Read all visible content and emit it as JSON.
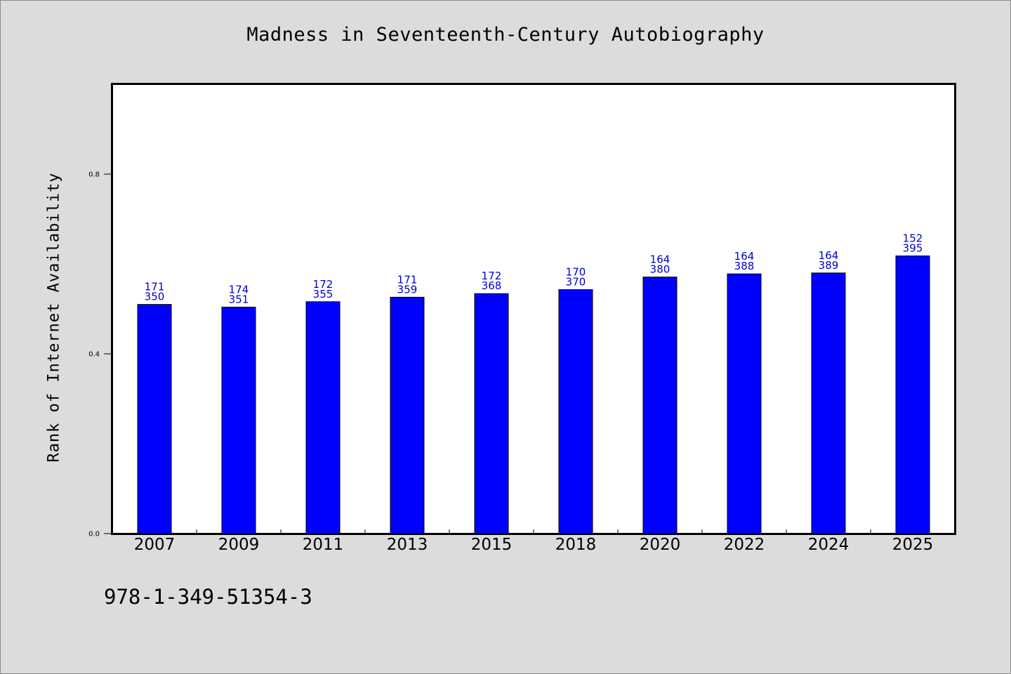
{
  "chart_data": {
    "type": "bar",
    "title": "Madness in Seventeenth-Century Autobiography",
    "ylabel": "Rank of Internet Availability",
    "xlabel": "",
    "categories": [
      "2007",
      "2009",
      "2011",
      "2013",
      "2015",
      "2018",
      "2020",
      "2022",
      "2024",
      "2025"
    ],
    "values": [
      0.51,
      0.504,
      0.516,
      0.526,
      0.534,
      0.543,
      0.571,
      0.578,
      0.58,
      0.618
    ],
    "label_top": [
      "171",
      "174",
      "172",
      "171",
      "172",
      "170",
      "164",
      "164",
      "164",
      "152"
    ],
    "label_bottom": [
      "350",
      "351",
      "355",
      "359",
      "368",
      "370",
      "380",
      "388",
      "389",
      "395"
    ],
    "ylim": [
      0,
      1.0
    ],
    "yticks": [
      0.0,
      0.4,
      0.8
    ],
    "ytick_labels": [
      "0.0",
      "0.4",
      "0.8"
    ],
    "grid": false,
    "bar_color": "#0000ff",
    "label_color": "#0000cc",
    "background": "#dcdcdc",
    "plot_background": "#ffffff"
  },
  "footer_text": "978-1-349-51354-3"
}
